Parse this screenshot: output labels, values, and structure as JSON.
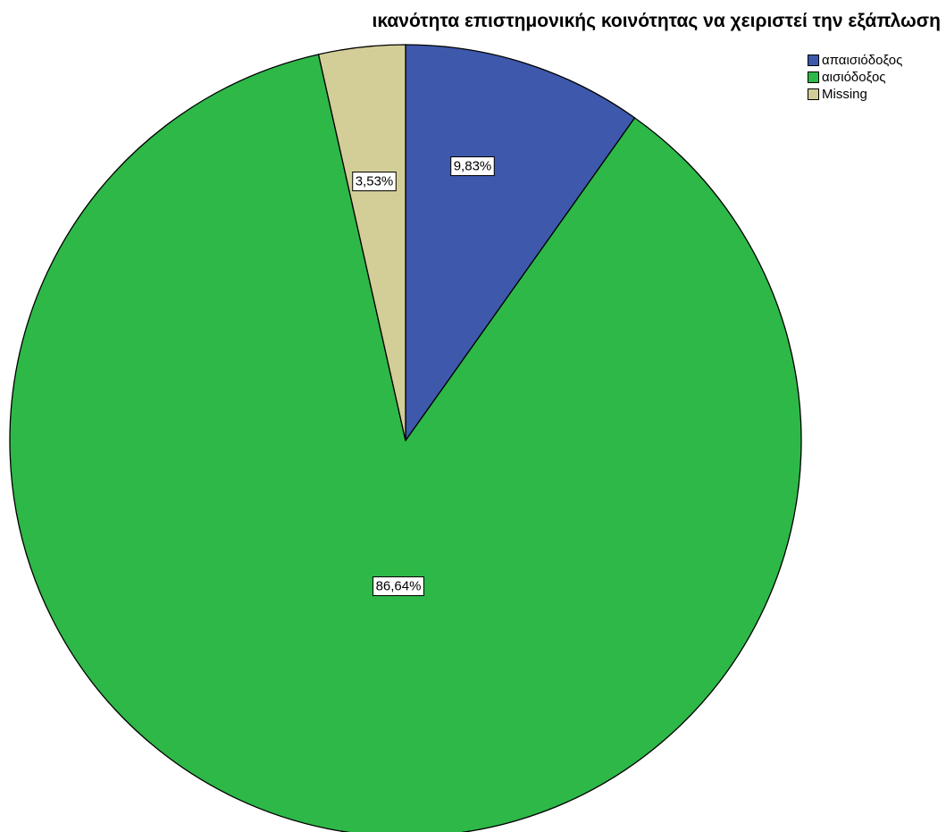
{
  "chart_data": {
    "type": "pie",
    "title": "ικανότητα επιστημονικής κοινότητας να χειριστεί την εξάπλωση",
    "legend_position": "top-right",
    "slices": [
      {
        "label": "απαισιόδοξος",
        "value": 9.83,
        "display": "9,83%",
        "color": "#3E58AC"
      },
      {
        "label": "αισιόδοξος",
        "value": 86.64,
        "display": "86,64%",
        "color": "#2EB848"
      },
      {
        "label": "Missing",
        "value": 3.53,
        "display": "3,53%",
        "color": "#D3CE97"
      }
    ]
  }
}
